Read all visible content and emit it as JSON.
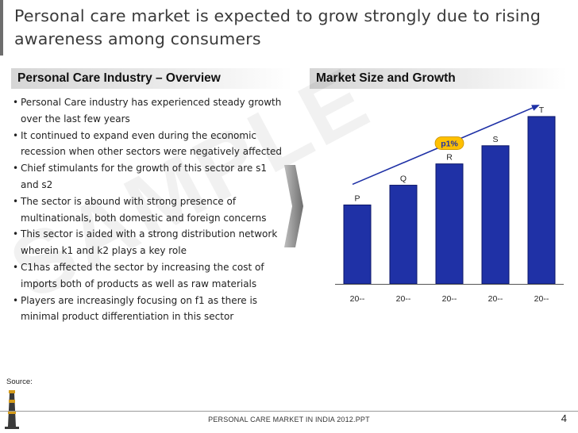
{
  "slide": {
    "title": "Personal care market is expected to grow strongly due to rising awareness among consumers",
    "left_heading": "Personal Care Industry – Overview",
    "right_heading": "Market Size and Growth",
    "bullets": [
      "Personal Care industry has experienced steady growth over the last few years",
      "It continued to expand  even during the economic recession when other sectors were negatively affected",
      "Chief stimulants for the growth of this sector are s1 and s2",
      "The sector is abound with strong presence of multinationals, both domestic and foreign concerns",
      "This sector is aided with a strong distribution network wherein k1 and k2 plays a key role",
      "C1has affected the sector by increasing the cost of imports both of products as well as raw materials",
      "Players are increasingly focusing on f1 as there is minimal product differentiation in this sector"
    ],
    "watermark": "SAMPLE",
    "source_label": "Source:",
    "footer": "PERSONAL CARE MARKET IN INDIA 2012.PPT",
    "page_number": "4"
  },
  "colors": {
    "bar_fill": "#1f31a6",
    "bar_stroke": "#0b1668",
    "growth_badge": "#ffc000"
  },
  "chart_data": {
    "type": "bar",
    "title": "Market Size and Growth",
    "categories": [
      "20--",
      "20--",
      "20--",
      "20--",
      "20--"
    ],
    "values": [
      100,
      125,
      152,
      175,
      212
    ],
    "data_labels": [
      "P",
      "Q",
      "R",
      "S",
      "T"
    ],
    "ylim": [
      0,
      225
    ],
    "trend_annotation": "p1%",
    "xlabel": "",
    "ylabel": ""
  }
}
